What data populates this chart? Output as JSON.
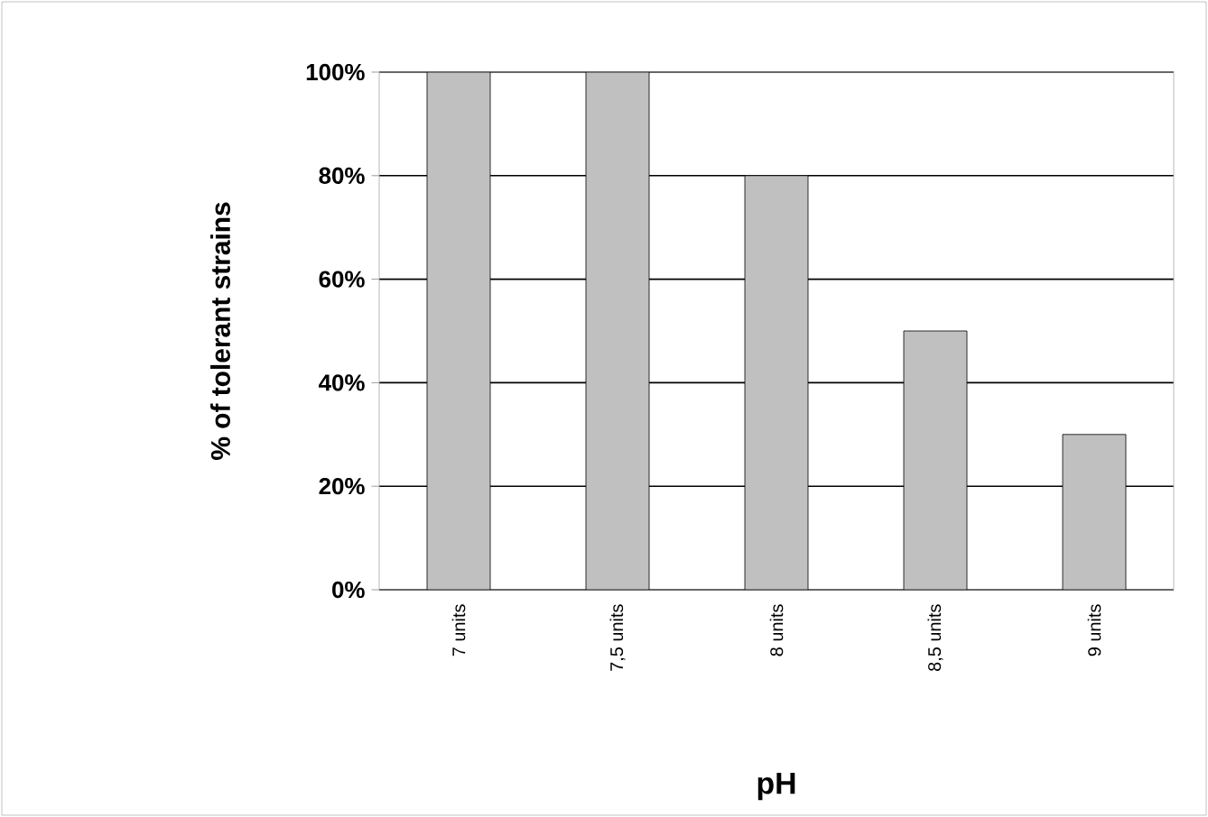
{
  "chart_data": {
    "type": "bar",
    "xlabel": "pH",
    "ylabel": "% of tolerant strains",
    "categories": [
      "7 units",
      "7,5 units",
      "8 units",
      "8,5 units",
      "9 units"
    ],
    "values": [
      100,
      100,
      80,
      50,
      30
    ],
    "color": "#c0c0c0",
    "ylim": [
      0,
      100
    ],
    "yticks": [
      {
        "value": 0,
        "label": "0%"
      },
      {
        "value": 20,
        "label": "20%"
      },
      {
        "value": 40,
        "label": "40%"
      },
      {
        "value": 60,
        "label": "60%"
      },
      {
        "value": 80,
        "label": "80%"
      },
      {
        "value": 100,
        "label": "100%"
      }
    ],
    "grid": "y"
  }
}
